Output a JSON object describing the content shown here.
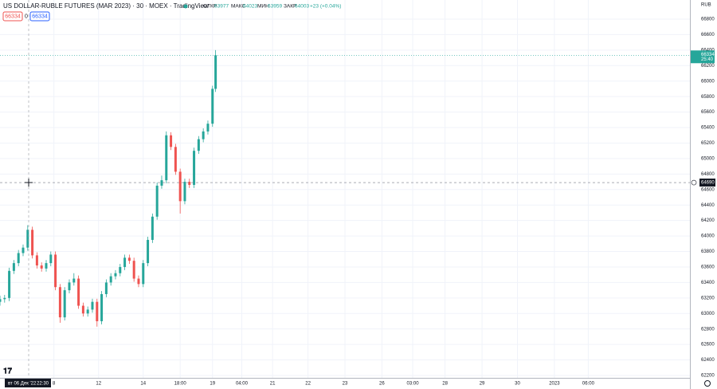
{
  "header": {
    "title": "US DOLLAR-RUBLE FUTURES (MAR 2023) · 30 · MOEX · TradingView",
    "open_label": "ОТКР",
    "open": 63977,
    "high_label": "МАКС",
    "high": 64023,
    "low_label": "МИН",
    "low": 63959,
    "close_label": "ЗАКР",
    "close": 64003,
    "change": "+23 (+0.04%)",
    "box1": 66334,
    "box2": 0,
    "box3": 66334
  },
  "chart_data": {
    "type": "candlestick",
    "currency": "RUB",
    "up_color": "#26a69a",
    "down_color": "#ef5350",
    "x": [
      0,
      3,
      6,
      9,
      12,
      15,
      18,
      21,
      24,
      27,
      30,
      33,
      36,
      39,
      42,
      45,
      48,
      51,
      54,
      57,
      60,
      63,
      66,
      69,
      72,
      75,
      78,
      81,
      84,
      87,
      90,
      93,
      96,
      99,
      102,
      105,
      108,
      111,
      114,
      117,
      120,
      123,
      126,
      129,
      132,
      135,
      138,
      140
    ],
    "open": [
      63150,
      63185,
      63200,
      63550,
      63650,
      63780,
      63850,
      64080,
      63750,
      63620,
      63580,
      63650,
      63760,
      63340,
      62950,
      63300,
      63400,
      63450,
      63100,
      63000,
      63050,
      63150,
      62900,
      63250,
      63400,
      63480,
      63520,
      63600,
      63720,
      63680,
      63450,
      63380,
      63650,
      63950,
      64250,
      64650,
      64720,
      65300,
      65150,
      64830,
      64450,
      64700,
      64660,
      65100,
      65250,
      65350,
      65450,
      65900
    ],
    "high": [
      63230,
      63240,
      63590,
      63690,
      63820,
      63890,
      64140,
      64120,
      63790,
      63660,
      63690,
      63800,
      63800,
      63380,
      63340,
      63440,
      63520,
      63490,
      63140,
      63090,
      63190,
      63190,
      63290,
      63440,
      63520,
      63560,
      63640,
      63760,
      63760,
      63720,
      63490,
      63690,
      63990,
      64290,
      64690,
      64780,
      65350,
      65340,
      65190,
      64870,
      64740,
      64740,
      65140,
      65290,
      65390,
      65490,
      65940,
      66400
    ],
    "low": [
      63100,
      63140,
      63160,
      63510,
      63610,
      63740,
      63810,
      63710,
      63580,
      63540,
      63540,
      63610,
      63300,
      62880,
      62910,
      63260,
      63360,
      63060,
      62960,
      62960,
      63010,
      62830,
      62860,
      63210,
      63360,
      63440,
      63480,
      63560,
      63640,
      63410,
      63340,
      63340,
      63610,
      63910,
      64210,
      64610,
      64680,
      65110,
      64790,
      64290,
      64410,
      64620,
      64620,
      65060,
      65210,
      65310,
      65410,
      65860
    ],
    "close": [
      63185,
      63200,
      63550,
      63650,
      63780,
      63850,
      64080,
      63750,
      63620,
      63580,
      63650,
      63760,
      63340,
      62950,
      63300,
      63400,
      63450,
      63100,
      63000,
      63050,
      63150,
      62900,
      63250,
      63400,
      63480,
      63520,
      63600,
      63720,
      63680,
      63450,
      63380,
      63650,
      63950,
      64250,
      64650,
      64720,
      65300,
      65150,
      64830,
      64450,
      64700,
      64660,
      65100,
      65250,
      65350,
      65450,
      65900,
      66334
    ],
    "xlim": [
      0,
      448
    ],
    "ylim": [
      62169,
      67047
    ],
    "yticks": [
      62200,
      62400,
      62600,
      62800,
      63000,
      63200,
      63400,
      63600,
      63800,
      64000,
      64200,
      64400,
      64600,
      64800,
      65000,
      65200,
      65400,
      65600,
      65800,
      66000,
      66200,
      66400,
      66600,
      66800
    ],
    "xticks": [
      {
        "value": 35,
        "label": "8"
      },
      {
        "value": 64,
        "label": "12"
      },
      {
        "value": 93,
        "label": "14"
      },
      {
        "value": 117,
        "label": "18:00"
      },
      {
        "value": 138,
        "label": "19"
      },
      {
        "value": 157,
        "label": "04:00"
      },
      {
        "value": 177,
        "label": "21"
      },
      {
        "value": 200,
        "label": "22"
      },
      {
        "value": 224,
        "label": "23"
      },
      {
        "value": 248,
        "label": "26"
      },
      {
        "value": 268,
        "label": "03:00"
      },
      {
        "value": 289,
        "label": "28"
      },
      {
        "value": 313,
        "label": "29"
      },
      {
        "value": 336,
        "label": "30"
      },
      {
        "value": 360,
        "label": "2023"
      },
      {
        "value": 382,
        "label": "06:00"
      }
    ],
    "grid": true,
    "countdown": "25:40",
    "crosshair_price": 64690,
    "crosshair_time": "вт 06 Дек '22",
    "crosshair_clock": "22:30"
  }
}
